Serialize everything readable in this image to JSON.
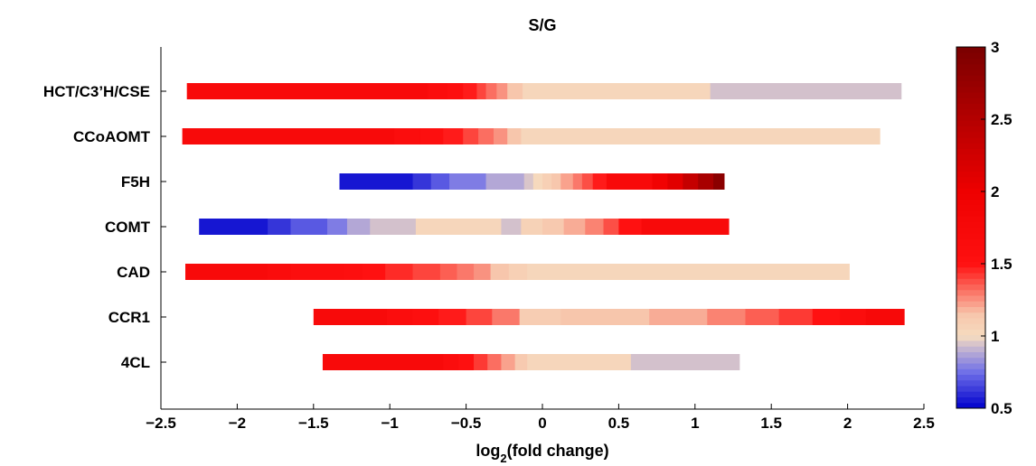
{
  "chart_data": {
    "type": "bar",
    "title": "S/G",
    "xlabel": {
      "main": "log",
      "sub": "2",
      "rest": "(fold change)"
    },
    "xlim": [
      -2.5,
      2.5
    ],
    "x_ticks": [
      "−2.5",
      "−2",
      "−1.5",
      "−1",
      "−0.5",
      "0",
      "0.5",
      "1",
      "1.5",
      "2",
      "2.5"
    ],
    "x_tick_values": [
      -2.5,
      -2,
      -1.5,
      -1,
      -0.5,
      0,
      0.5,
      1,
      1.5,
      2,
      2.5
    ],
    "categories": [
      "HCT/C3’H/CSE",
      "CCoAOMT",
      "F5H",
      "COMT",
      "CAD",
      "CCR1",
      "4CL"
    ],
    "bars": [
      {
        "name": "HCT/C3’H/CSE",
        "range": [
          -2.33,
          2.35
        ],
        "segments": [
          [
            -2.33,
            -0.75,
            1.7
          ],
          [
            -0.75,
            -0.62,
            1.62
          ],
          [
            -0.62,
            -0.52,
            1.55
          ],
          [
            -0.52,
            -0.43,
            1.48
          ],
          [
            -0.43,
            -0.37,
            1.4
          ],
          [
            -0.37,
            -0.3,
            1.32
          ],
          [
            -0.3,
            -0.23,
            1.25
          ],
          [
            -0.23,
            -0.13,
            1.15
          ],
          [
            -0.13,
            1.1,
            1.04
          ],
          [
            1.1,
            2.35,
            0.94
          ]
        ]
      },
      {
        "name": "CCoAOMT",
        "range": [
          -2.36,
          2.21
        ],
        "segments": [
          [
            -2.36,
            -0.97,
            1.7
          ],
          [
            -0.97,
            -0.8,
            1.62
          ],
          [
            -0.8,
            -0.65,
            1.55
          ],
          [
            -0.65,
            -0.52,
            1.48
          ],
          [
            -0.52,
            -0.42,
            1.4
          ],
          [
            -0.42,
            -0.32,
            1.32
          ],
          [
            -0.32,
            -0.23,
            1.25
          ],
          [
            -0.23,
            -0.14,
            1.15
          ],
          [
            -0.14,
            2.21,
            1.04
          ]
        ]
      },
      {
        "name": "F5H",
        "range": [
          -1.33,
          1.19
        ],
        "segments": [
          [
            -1.33,
            -0.85,
            0.55
          ],
          [
            -0.85,
            -0.73,
            0.62
          ],
          [
            -0.73,
            -0.61,
            0.7
          ],
          [
            -0.61,
            -0.37,
            0.78
          ],
          [
            -0.37,
            -0.12,
            0.88
          ],
          [
            -0.12,
            -0.06,
            0.95
          ],
          [
            -0.06,
            0.0,
            1.02
          ],
          [
            0.0,
            0.06,
            1.08
          ],
          [
            0.06,
            0.12,
            1.14
          ],
          [
            0.12,
            0.2,
            1.22
          ],
          [
            0.2,
            0.26,
            1.3
          ],
          [
            0.26,
            0.33,
            1.38
          ],
          [
            0.33,
            0.42,
            1.48
          ],
          [
            0.42,
            0.72,
            1.72
          ],
          [
            0.72,
            0.82,
            1.9
          ],
          [
            0.82,
            0.92,
            2.1
          ],
          [
            0.92,
            1.02,
            2.35
          ],
          [
            1.02,
            1.12,
            2.6
          ],
          [
            1.12,
            1.19,
            2.85
          ]
        ]
      },
      {
        "name": "COMT",
        "range": [
          -2.25,
          1.22
        ],
        "segments": [
          [
            -2.25,
            -1.8,
            0.55
          ],
          [
            -1.8,
            -1.65,
            0.62
          ],
          [
            -1.65,
            -1.41,
            0.7
          ],
          [
            -1.41,
            -1.28,
            0.78
          ],
          [
            -1.28,
            -1.13,
            0.88
          ],
          [
            -1.13,
            -0.83,
            0.94
          ],
          [
            -0.83,
            -0.27,
            1.04
          ],
          [
            -0.27,
            -0.14,
            0.94
          ],
          [
            -0.14,
            0.0,
            1.07
          ],
          [
            0.0,
            0.14,
            1.13
          ],
          [
            0.14,
            0.28,
            1.2
          ],
          [
            0.28,
            0.4,
            1.28
          ],
          [
            0.4,
            0.5,
            1.38
          ],
          [
            0.5,
            0.65,
            1.5
          ],
          [
            0.65,
            1.22,
            1.72
          ]
        ]
      },
      {
        "name": "CAD",
        "range": [
          -2.34,
          2.01
        ],
        "segments": [
          [
            -2.34,
            -1.8,
            1.72
          ],
          [
            -1.8,
            -1.65,
            1.65
          ],
          [
            -1.65,
            -1.3,
            1.6
          ],
          [
            -1.3,
            -1.18,
            1.55
          ],
          [
            -1.18,
            -1.03,
            1.5
          ],
          [
            -1.03,
            -0.85,
            1.45
          ],
          [
            -0.85,
            -0.67,
            1.4
          ],
          [
            -0.67,
            -0.56,
            1.35
          ],
          [
            -0.56,
            -0.45,
            1.3
          ],
          [
            -0.45,
            -0.34,
            1.25
          ],
          [
            -0.34,
            -0.22,
            1.15
          ],
          [
            -0.22,
            -0.1,
            1.08
          ],
          [
            -0.1,
            2.01,
            1.04
          ]
        ]
      },
      {
        "name": "CCR1",
        "range": [
          -1.5,
          2.37
        ],
        "segments": [
          [
            -1.5,
            -1.02,
            1.72
          ],
          [
            -1.02,
            -0.85,
            1.62
          ],
          [
            -0.85,
            -0.68,
            1.55
          ],
          [
            -0.68,
            -0.5,
            1.48
          ],
          [
            -0.5,
            -0.33,
            1.4
          ],
          [
            -0.33,
            -0.15,
            1.3
          ],
          [
            -0.15,
            0.12,
            1.1
          ],
          [
            0.12,
            0.7,
            1.15
          ],
          [
            0.7,
            1.08,
            1.2
          ],
          [
            1.08,
            1.33,
            1.28
          ],
          [
            1.33,
            1.55,
            1.35
          ],
          [
            1.55,
            1.77,
            1.42
          ],
          [
            1.77,
            1.95,
            1.5
          ],
          [
            1.95,
            2.12,
            1.62
          ],
          [
            2.12,
            2.37,
            1.75
          ]
        ]
      },
      {
        "name": "4CL",
        "range": [
          -1.44,
          1.29
        ],
        "segments": [
          [
            -1.44,
            -0.65,
            1.72
          ],
          [
            -0.65,
            -0.55,
            1.62
          ],
          [
            -0.55,
            -0.45,
            1.52
          ],
          [
            -0.45,
            -0.36,
            1.42
          ],
          [
            -0.36,
            -0.27,
            1.32
          ],
          [
            -0.27,
            -0.18,
            1.22
          ],
          [
            -0.18,
            -0.1,
            1.12
          ],
          [
            -0.1,
            0.58,
            1.04
          ],
          [
            0.58,
            1.29,
            0.94
          ]
        ]
      }
    ],
    "colorbar": {
      "range": [
        0.5,
        3
      ],
      "ticks": [
        "0.5",
        "1",
        "1.5",
        "2",
        "2.5",
        "3"
      ],
      "tick_values": [
        0.5,
        1,
        1.5,
        2,
        2.5,
        3
      ],
      "stops": [
        {
          "v": 0.5,
          "color": "#0000cc"
        },
        {
          "v": 0.75,
          "color": "#6f6fe8"
        },
        {
          "v": 0.92,
          "color": "#c8b8d0"
        },
        {
          "v": 1.0,
          "color": "#f6dcc0"
        },
        {
          "v": 1.15,
          "color": "#f7c6ac"
        },
        {
          "v": 1.5,
          "color": "#ff1111"
        },
        {
          "v": 2.0,
          "color": "#ee0000"
        },
        {
          "v": 3.0,
          "color": "#7a0000"
        }
      ]
    },
    "grid": false,
    "legend": "right"
  }
}
